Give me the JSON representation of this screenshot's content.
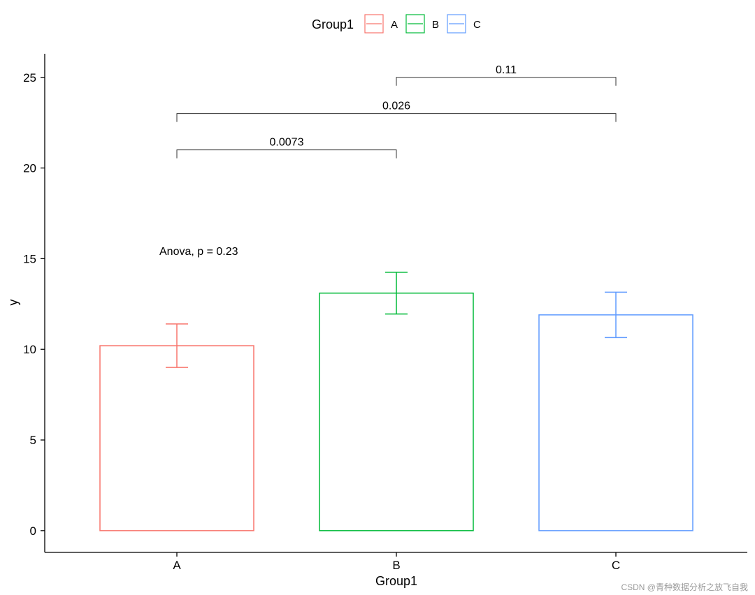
{
  "chart_data": {
    "type": "bar",
    "style": "outlined bars with error bars",
    "xlabel": "Group1",
    "ylabel": "y",
    "categories": [
      "A",
      "B",
      "C"
    ],
    "values": [
      10.2,
      13.1,
      11.9
    ],
    "error_low": [
      9.0,
      11.95,
      10.65
    ],
    "error_high": [
      11.4,
      14.25,
      13.15
    ],
    "colors": [
      "#F8766D",
      "#00BA38",
      "#619CFF"
    ],
    "ylim": [
      -1.2,
      26.3
    ],
    "yticks": [
      0,
      5,
      10,
      15,
      20,
      25
    ],
    "ytick_labels": [
      "0",
      "5",
      "10",
      "15",
      "20",
      "25"
    ],
    "grid": false,
    "legend": {
      "title": "Group1",
      "position": "top",
      "entries": [
        "A",
        "B",
        "C"
      ]
    },
    "annotations": [
      {
        "text": "Anova, p = 0.23",
        "x": "A",
        "y": 15.2
      }
    ],
    "comparisons": [
      {
        "from": "A",
        "to": "B",
        "y": 21.0,
        "label": "0.0073"
      },
      {
        "from": "A",
        "to": "C",
        "y": 23.0,
        "label": "0.026"
      },
      {
        "from": "B",
        "to": "C",
        "y": 25.0,
        "label": "0.11"
      }
    ]
  },
  "watermark": "CSDN @青种数据分析之放飞自我"
}
